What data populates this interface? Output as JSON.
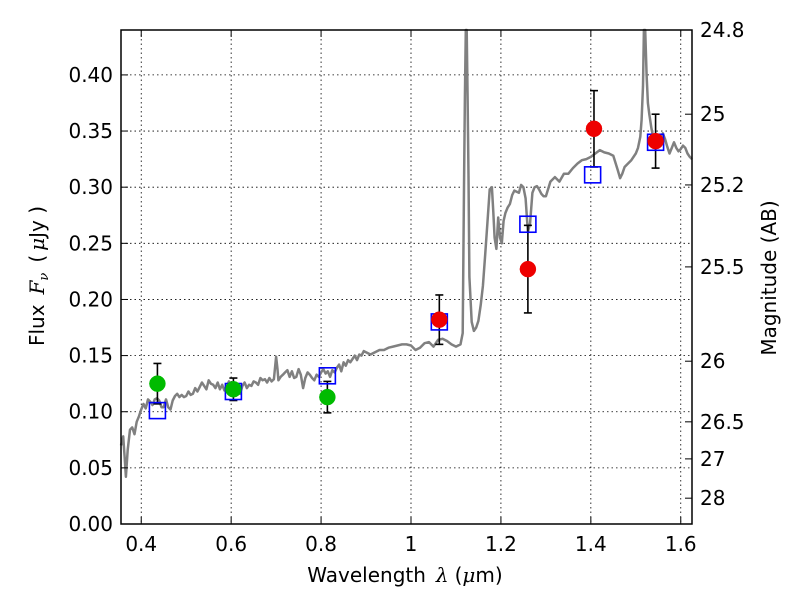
{
  "chart_data": {
    "type": "scatter",
    "xlabel": "Wavelength",
    "xlabel_symbol": "λ",
    "xlabel_unit_open": "(",
    "xlabel_unit_mu": "μ",
    "xlabel_unit_rest": "m)",
    "ylabel": "Flux",
    "ylabel_symbol": "F",
    "ylabel_symbol_sub": "ν",
    "ylabel_unit_open": "(",
    "ylabel_unit_mu": "μ",
    "ylabel_unit_rest": "Jy )",
    "y2label": "Magnitude (AB)",
    "xlim": [
      0.355,
      1.625
    ],
    "ylim": [
      0.0,
      0.44
    ],
    "grid": true,
    "x_ticks": [
      {
        "value": 0.4,
        "label": "0.4"
      },
      {
        "value": 0.6,
        "label": "0.6"
      },
      {
        "value": 0.8,
        "label": "0.8"
      },
      {
        "value": 1.0,
        "label": "1"
      },
      {
        "value": 1.2,
        "label": "1.2"
      },
      {
        "value": 1.4,
        "label": "1.4"
      },
      {
        "value": 1.6,
        "label": "1.6"
      }
    ],
    "y_ticks": [
      {
        "value": 0.0,
        "label": "0.00"
      },
      {
        "value": 0.05,
        "label": "0.05"
      },
      {
        "value": 0.1,
        "label": "0.10"
      },
      {
        "value": 0.15,
        "label": "0.15"
      },
      {
        "value": 0.2,
        "label": "0.20"
      },
      {
        "value": 0.25,
        "label": "0.25"
      },
      {
        "value": 0.3,
        "label": "0.30"
      },
      {
        "value": 0.35,
        "label": "0.35"
      },
      {
        "value": 0.4,
        "label": "0.40"
      }
    ],
    "y2_ticks": [
      {
        "flux": 0.44,
        "label": "24.8"
      },
      {
        "flux": 0.365,
        "label": "25"
      },
      {
        "flux": 0.302,
        "label": "25.2"
      },
      {
        "flux": 0.229,
        "label": "25.5"
      },
      {
        "flux": 0.145,
        "label": "26"
      },
      {
        "flux": 0.091,
        "label": "26.5"
      },
      {
        "flux": 0.058,
        "label": "27"
      },
      {
        "flux": 0.023,
        "label": "28"
      }
    ],
    "series": [
      {
        "kind": "spectrum",
        "color": "#808080",
        "points": [
          [
            0.355,
            0.07
          ],
          [
            0.36,
            0.078
          ],
          [
            0.363,
            0.06
          ],
          [
            0.366,
            0.042
          ],
          [
            0.37,
            0.066
          ],
          [
            0.375,
            0.084
          ],
          [
            0.38,
            0.086
          ],
          [
            0.385,
            0.08
          ],
          [
            0.39,
            0.091
          ],
          [
            0.395,
            0.096
          ],
          [
            0.4,
            0.102
          ],
          [
            0.405,
            0.107
          ],
          [
            0.41,
            0.103
          ],
          [
            0.415,
            0.111
          ],
          [
            0.42,
            0.109
          ],
          [
            0.425,
            0.106
          ],
          [
            0.43,
            0.111
          ],
          [
            0.435,
            0.112
          ],
          [
            0.44,
            0.11
          ],
          [
            0.445,
            0.104
          ],
          [
            0.45,
            0.104
          ],
          [
            0.455,
            0.111
          ],
          [
            0.46,
            0.104
          ],
          [
            0.465,
            0.102
          ],
          [
            0.47,
            0.11
          ],
          [
            0.475,
            0.114
          ],
          [
            0.48,
            0.116
          ],
          [
            0.485,
            0.113
          ],
          [
            0.49,
            0.115
          ],
          [
            0.495,
            0.113
          ],
          [
            0.5,
            0.114
          ],
          [
            0.505,
            0.118
          ],
          [
            0.51,
            0.115
          ],
          [
            0.515,
            0.116
          ],
          [
            0.52,
            0.121
          ],
          [
            0.525,
            0.118
          ],
          [
            0.53,
            0.122
          ],
          [
            0.535,
            0.126
          ],
          [
            0.54,
            0.123
          ],
          [
            0.545,
            0.12
          ],
          [
            0.55,
            0.128
          ],
          [
            0.555,
            0.125
          ],
          [
            0.56,
            0.124
          ],
          [
            0.565,
            0.121
          ],
          [
            0.57,
            0.126
          ],
          [
            0.575,
            0.12
          ],
          [
            0.58,
            0.124
          ],
          [
            0.585,
            0.119
          ],
          [
            0.59,
            0.122
          ],
          [
            0.595,
            0.127
          ],
          [
            0.6,
            0.122
          ],
          [
            0.605,
            0.119
          ],
          [
            0.61,
            0.124
          ],
          [
            0.615,
            0.121
          ],
          [
            0.62,
            0.116
          ],
          [
            0.625,
            0.123
          ],
          [
            0.63,
            0.126
          ],
          [
            0.635,
            0.121
          ],
          [
            0.64,
            0.124
          ],
          [
            0.645,
            0.123
          ],
          [
            0.65,
            0.127
          ],
          [
            0.655,
            0.126
          ],
          [
            0.66,
            0.124
          ],
          [
            0.665,
            0.13
          ],
          [
            0.67,
            0.128
          ],
          [
            0.675,
            0.129
          ],
          [
            0.68,
            0.126
          ],
          [
            0.685,
            0.13
          ],
          [
            0.69,
            0.127
          ],
          [
            0.695,
            0.129
          ],
          [
            0.7,
            0.149
          ],
          [
            0.703,
            0.138
          ],
          [
            0.705,
            0.128
          ],
          [
            0.71,
            0.131
          ],
          [
            0.715,
            0.133
          ],
          [
            0.72,
            0.135
          ],
          [
            0.725,
            0.137
          ],
          [
            0.73,
            0.131
          ],
          [
            0.735,
            0.136
          ],
          [
            0.74,
            0.13
          ],
          [
            0.745,
            0.131
          ],
          [
            0.75,
            0.138
          ],
          [
            0.755,
            0.133
          ],
          [
            0.76,
            0.121
          ],
          [
            0.765,
            0.13
          ],
          [
            0.77,
            0.135
          ],
          [
            0.775,
            0.133
          ],
          [
            0.78,
            0.13
          ],
          [
            0.785,
            0.128
          ],
          [
            0.79,
            0.133
          ],
          [
            0.795,
            0.131
          ],
          [
            0.8,
            0.135
          ],
          [
            0.805,
            0.138
          ],
          [
            0.81,
            0.134
          ],
          [
            0.815,
            0.136
          ],
          [
            0.82,
            0.131
          ],
          [
            0.825,
            0.137
          ],
          [
            0.83,
            0.135
          ],
          [
            0.835,
            0.139
          ],
          [
            0.84,
            0.142
          ],
          [
            0.845,
            0.136
          ],
          [
            0.85,
            0.144
          ],
          [
            0.855,
            0.141
          ],
          [
            0.86,
            0.146
          ],
          [
            0.865,
            0.144
          ],
          [
            0.87,
            0.147
          ],
          [
            0.875,
            0.15
          ],
          [
            0.88,
            0.146
          ],
          [
            0.885,
            0.151
          ],
          [
            0.89,
            0.15
          ],
          [
            0.895,
            0.154
          ],
          [
            0.9,
            0.153
          ],
          [
            0.91,
            0.151
          ],
          [
            0.92,
            0.153
          ],
          [
            0.93,
            0.155
          ],
          [
            0.94,
            0.155
          ],
          [
            0.95,
            0.157
          ],
          [
            0.96,
            0.158
          ],
          [
            0.97,
            0.159
          ],
          [
            0.98,
            0.16
          ],
          [
            0.99,
            0.16
          ],
          [
            1.0,
            0.159
          ],
          [
            1.01,
            0.155
          ],
          [
            1.02,
            0.157
          ],
          [
            1.03,
            0.161
          ],
          [
            1.04,
            0.162
          ],
          [
            1.05,
            0.158
          ],
          [
            1.06,
            0.164
          ],
          [
            1.07,
            0.165
          ],
          [
            1.08,
            0.163
          ],
          [
            1.09,
            0.16
          ],
          [
            1.1,
            0.158
          ],
          [
            1.105,
            0.159
          ],
          [
            1.11,
            0.16
          ],
          [
            1.115,
            0.17
          ],
          [
            1.118,
            0.3
          ],
          [
            1.12,
            0.38
          ],
          [
            1.122,
            0.44
          ],
          [
            1.124,
            0.44
          ],
          [
            1.126,
            0.38
          ],
          [
            1.128,
            0.31
          ],
          [
            1.13,
            0.22
          ],
          [
            1.135,
            0.18
          ],
          [
            1.14,
            0.172
          ],
          [
            1.145,
            0.175
          ],
          [
            1.15,
            0.181
          ],
          [
            1.155,
            0.195
          ],
          [
            1.16,
            0.212
          ],
          [
            1.165,
            0.24
          ],
          [
            1.17,
            0.268
          ],
          [
            1.175,
            0.298
          ],
          [
            1.18,
            0.3
          ],
          [
            1.183,
            0.278
          ],
          [
            1.186,
            0.255
          ],
          [
            1.19,
            0.245
          ],
          [
            1.194,
            0.273
          ],
          [
            1.198,
            0.255
          ],
          [
            1.202,
            0.25
          ],
          [
            1.206,
            0.27
          ],
          [
            1.21,
            0.277
          ],
          [
            1.215,
            0.282
          ],
          [
            1.22,
            0.285
          ],
          [
            1.225,
            0.293
          ],
          [
            1.23,
            0.297
          ],
          [
            1.235,
            0.296
          ],
          [
            1.24,
            0.295
          ],
          [
            1.245,
            0.302
          ],
          [
            1.25,
            0.3
          ],
          [
            1.255,
            0.29
          ],
          [
            1.26,
            0.26
          ],
          [
            1.265,
            0.268
          ],
          [
            1.27,
            0.295
          ],
          [
            1.275,
            0.3
          ],
          [
            1.28,
            0.301
          ],
          [
            1.285,
            0.298
          ],
          [
            1.29,
            0.294
          ],
          [
            1.295,
            0.292
          ],
          [
            1.3,
            0.292
          ],
          [
            1.31,
            0.305
          ],
          [
            1.32,
            0.309
          ],
          [
            1.33,
            0.305
          ],
          [
            1.34,
            0.312
          ],
          [
            1.35,
            0.312
          ],
          [
            1.36,
            0.317
          ],
          [
            1.37,
            0.321
          ],
          [
            1.38,
            0.324
          ],
          [
            1.39,
            0.325
          ],
          [
            1.4,
            0.327
          ],
          [
            1.41,
            0.33
          ],
          [
            1.42,
            0.333
          ],
          [
            1.43,
            0.331
          ],
          [
            1.44,
            0.33
          ],
          [
            1.45,
            0.328
          ],
          [
            1.46,
            0.315
          ],
          [
            1.465,
            0.308
          ],
          [
            1.47,
            0.312
          ],
          [
            1.475,
            0.318
          ],
          [
            1.48,
            0.32
          ],
          [
            1.49,
            0.324
          ],
          [
            1.5,
            0.33
          ],
          [
            1.505,
            0.335
          ],
          [
            1.51,
            0.345
          ],
          [
            1.513,
            0.36
          ],
          [
            1.516,
            0.39
          ],
          [
            1.518,
            0.44
          ],
          [
            1.521,
            0.44
          ],
          [
            1.524,
            0.4
          ],
          [
            1.527,
            0.375
          ],
          [
            1.53,
            0.365
          ],
          [
            1.535,
            0.352
          ],
          [
            1.54,
            0.342
          ],
          [
            1.545,
            0.338
          ],
          [
            1.55,
            0.337
          ],
          [
            1.555,
            0.34
          ],
          [
            1.56,
            0.348
          ],
          [
            1.565,
            0.343
          ],
          [
            1.57,
            0.336
          ],
          [
            1.575,
            0.33
          ],
          [
            1.58,
            0.335
          ],
          [
            1.585,
            0.34
          ],
          [
            1.59,
            0.335
          ],
          [
            1.595,
            0.332
          ],
          [
            1.6,
            0.334
          ],
          [
            1.605,
            0.337
          ],
          [
            1.61,
            0.335
          ],
          [
            1.615,
            0.33
          ],
          [
            1.62,
            0.327
          ],
          [
            1.625,
            0.325
          ]
        ]
      },
      {
        "kind": "synthetic-photometry",
        "marker": "open-square",
        "color": "#0000ff",
        "points": [
          {
            "x": 0.436,
            "y": 0.101
          },
          {
            "x": 0.605,
            "y": 0.118
          },
          {
            "x": 0.814,
            "y": 0.132
          },
          {
            "x": 1.063,
            "y": 0.18
          },
          {
            "x": 1.26,
            "y": 0.267
          },
          {
            "x": 1.404,
            "y": 0.311
          },
          {
            "x": 1.544,
            "y": 0.34
          }
        ]
      },
      {
        "kind": "observed-optical",
        "marker": "filled-circle",
        "color": "#00bb00",
        "points": [
          {
            "x": 0.436,
            "y": 0.125,
            "err": 0.018
          },
          {
            "x": 0.605,
            "y": 0.12,
            "err": 0.01
          },
          {
            "x": 0.814,
            "y": 0.113,
            "err": 0.014
          }
        ]
      },
      {
        "kind": "observed-infrared",
        "marker": "filled-circle",
        "color": "#ee0000",
        "points": [
          {
            "x": 1.063,
            "y": 0.182,
            "err": 0.022
          },
          {
            "x": 1.26,
            "y": 0.227,
            "err": 0.039
          },
          {
            "x": 1.407,
            "y": 0.352,
            "err": 0.034
          },
          {
            "x": 1.544,
            "y": 0.341,
            "err": 0.024
          }
        ]
      }
    ]
  }
}
